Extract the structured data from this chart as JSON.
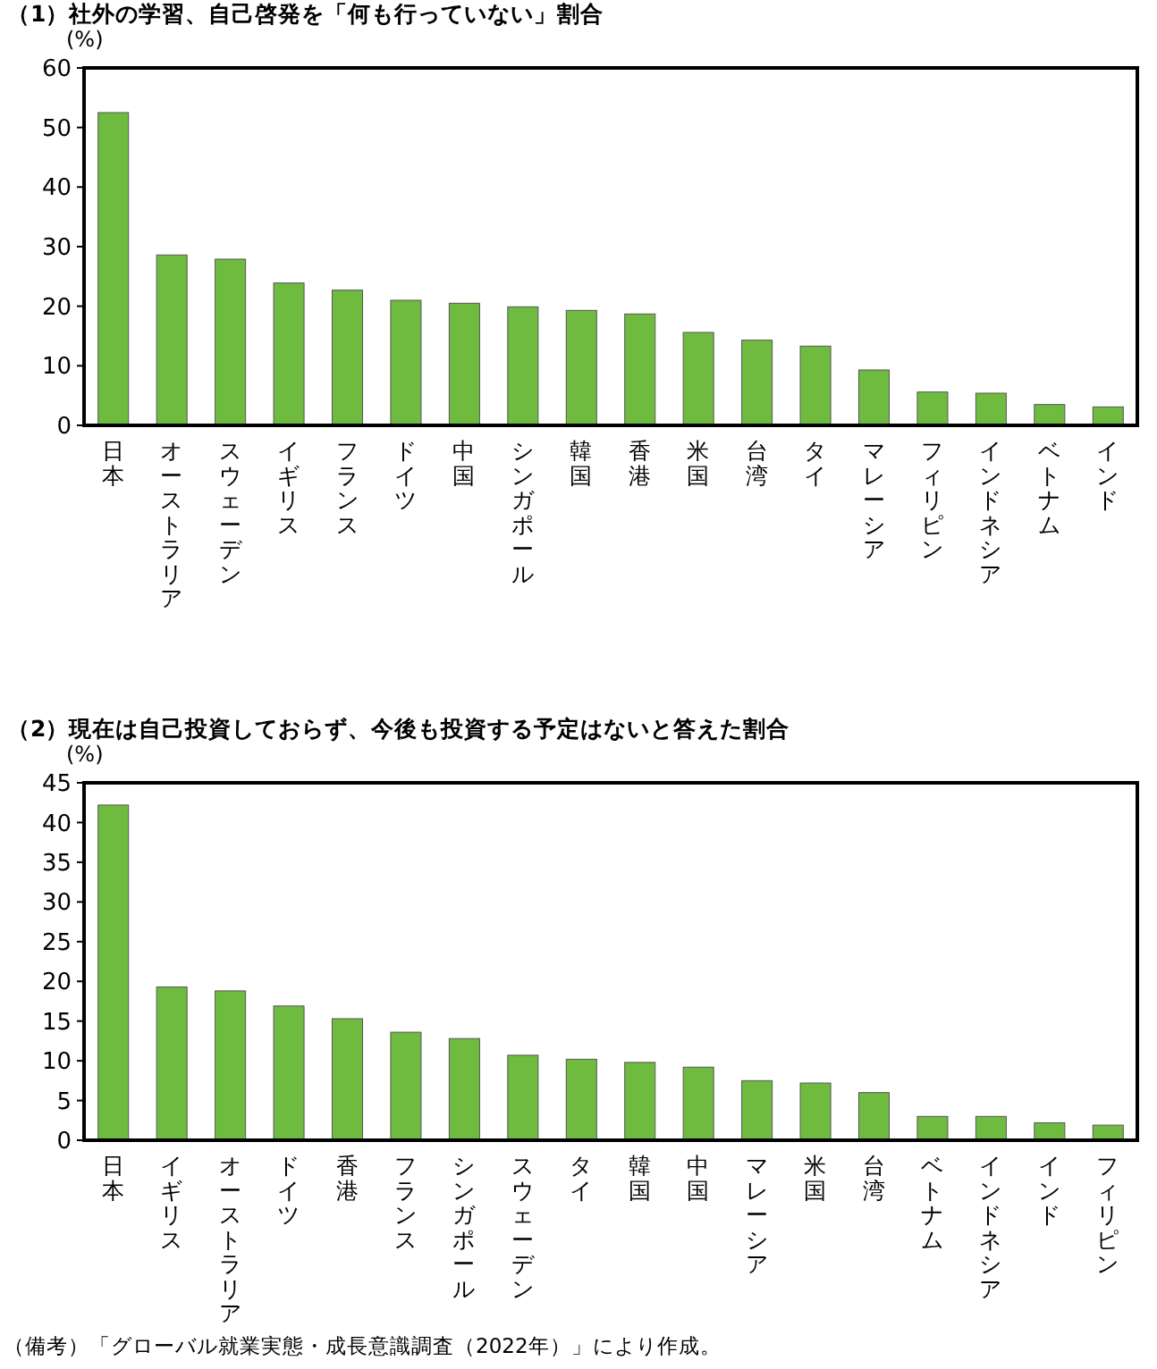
{
  "chart_data": [
    {
      "type": "bar",
      "title": "（1）社外の学習、自己啓発を「何も行っていない」割合",
      "ylabel": "(%)",
      "categories": [
        "日本",
        "オーストラリア",
        "スウェーデン",
        "イギリス",
        "フランス",
        "ドイツ",
        "中国",
        "シンガポール",
        "韓国",
        "香港",
        "米国",
        "台湾",
        "タイ",
        "マレーシア",
        "フィリピン",
        "インドネシア",
        "ベトナム",
        "インド"
      ],
      "series": [
        {
          "color": "#6fbb3f",
          "values": [
            52.5,
            28.6,
            27.9,
            23.9,
            22.7,
            21.0,
            20.5,
            19.9,
            19.3,
            18.7,
            15.6,
            14.3,
            13.3,
            9.3,
            5.6,
            5.4,
            3.5,
            3.1
          ]
        }
      ],
      "ylim": [
        0,
        60
      ],
      "yticks": [
        0,
        10,
        20,
        30,
        40,
        50,
        60
      ],
      "grid": false
    },
    {
      "type": "bar",
      "title": "（2）現在は自己投資しておらず、今後も投資する予定はないと答えた割合",
      "ylabel": "(%)",
      "categories": [
        "日本",
        "イギリス",
        "オーストラリア",
        "ドイツ",
        "香港",
        "フランス",
        "シンガポール",
        "スウェーデン",
        "タイ",
        "韓国",
        "中国",
        "マレーシア",
        "米国",
        "台湾",
        "ベトナム",
        "インドネシア",
        "インド",
        "フィリピン"
      ],
      "series": [
        {
          "color": "#6fbb3f",
          "values": [
            42.2,
            19.3,
            18.8,
            16.9,
            15.3,
            13.6,
            12.8,
            10.7,
            10.2,
            9.8,
            9.2,
            7.5,
            7.2,
            6.0,
            3.0,
            3.0,
            2.2,
            1.9
          ]
        }
      ],
      "ylim": [
        0,
        45
      ],
      "yticks": [
        0,
        5,
        10,
        15,
        20,
        25,
        30,
        35,
        40,
        45
      ],
      "grid": false,
      "annotations": [
        "（備考）「グローバル就業実態・成長意識調査（2022年）」により作成。"
      ]
    }
  ]
}
